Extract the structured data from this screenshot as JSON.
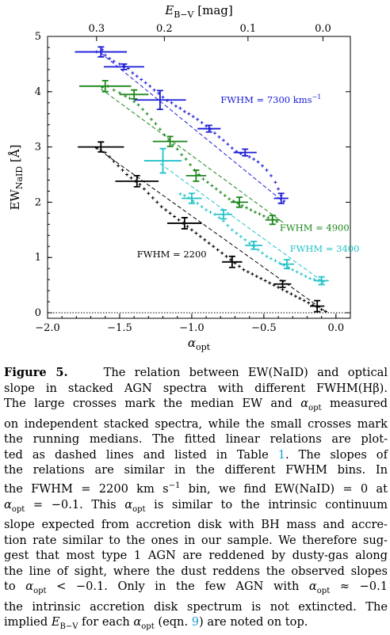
{
  "chart_data": {
    "type": "scatter",
    "xlabel": "α_opt",
    "ylabel": "EW_NaID [Å]",
    "top_xlabel": "E_B−V [mag]",
    "xlim": [
      -2.0,
      0.1
    ],
    "ylim": [
      -0.1,
      5.0
    ],
    "x_ticks": [
      "−2.0",
      "−1.5",
      "−1.0",
      "−0.5",
      "0.0"
    ],
    "y_ticks": [
      "0",
      "1",
      "2",
      "3",
      "4",
      "5"
    ],
    "top_ticks": [
      "0.3",
      "0.2",
      "0.1",
      "0.0"
    ],
    "grid": false,
    "zero_line": "dotted",
    "series": [
      {
        "name": "FWHM = 7300 kms⁻¹",
        "color": "#1a1ad8",
        "fit": [
          [
            -1.63,
            4.7
          ],
          [
            -0.36,
            2.0
          ]
        ],
        "medians": [
          {
            "x": -1.63,
            "y": 4.72,
            "xerr": 0.18,
            "yerr": 0.09
          },
          {
            "x": -1.47,
            "y": 4.45,
            "xerr": 0.14,
            "yerr": 0.05
          },
          {
            "x": -1.22,
            "y": 3.85,
            "xerr": 0.18,
            "yerr": 0.17
          },
          {
            "x": -0.88,
            "y": 3.33,
            "xerr": 0.08,
            "yerr": 0.06
          },
          {
            "x": -0.63,
            "y": 2.9,
            "xerr": 0.08,
            "yerr": 0.06
          },
          {
            "x": -0.38,
            "y": 2.07,
            "xerr": 0.05,
            "yerr": 0.09
          }
        ],
        "running": [
          [
            -1.66,
            4.72
          ],
          [
            -1.62,
            4.76
          ],
          [
            -1.6,
            4.66
          ],
          [
            -1.57,
            4.6
          ],
          [
            -1.54,
            4.55
          ],
          [
            -1.5,
            4.5
          ],
          [
            -1.47,
            4.47
          ],
          [
            -1.44,
            4.42
          ],
          [
            -1.41,
            4.34
          ],
          [
            -1.38,
            4.28
          ],
          [
            -1.35,
            4.22
          ],
          [
            -1.32,
            4.16
          ],
          [
            -1.29,
            4.1
          ],
          [
            -1.26,
            4.03
          ],
          [
            -1.23,
            3.97
          ],
          [
            -1.2,
            3.9
          ],
          [
            -1.17,
            3.84
          ],
          [
            -1.14,
            3.8
          ],
          [
            -1.11,
            3.74
          ],
          [
            -1.08,
            3.7
          ],
          [
            -1.05,
            3.64
          ],
          [
            -1.02,
            3.6
          ],
          [
            -0.99,
            3.55
          ],
          [
            -0.96,
            3.5
          ],
          [
            -0.93,
            3.44
          ],
          [
            -0.9,
            3.38
          ],
          [
            -0.87,
            3.32
          ],
          [
            -0.84,
            3.25
          ],
          [
            -0.81,
            3.18
          ],
          [
            -0.78,
            3.12
          ],
          [
            -0.75,
            3.05
          ],
          [
            -0.72,
            2.98
          ],
          [
            -0.69,
            2.92
          ],
          [
            -0.66,
            2.88
          ],
          [
            -0.63,
            2.85
          ],
          [
            -0.6,
            2.82
          ],
          [
            -0.57,
            2.78
          ],
          [
            -0.54,
            2.73
          ],
          [
            -0.51,
            2.66
          ],
          [
            -0.48,
            2.58
          ],
          [
            -0.45,
            2.48
          ],
          [
            -0.42,
            2.36
          ],
          [
            -0.4,
            2.24
          ],
          [
            -0.38,
            2.12
          ],
          [
            -0.36,
            2.02
          ]
        ]
      },
      {
        "name": "FWHM = 4900",
        "color": "#1b861b",
        "fit": [
          [
            -1.63,
            4.05
          ],
          [
            -0.36,
            1.62
          ]
        ],
        "medians": [
          {
            "x": -1.6,
            "y": 4.1,
            "xerr": 0.18,
            "yerr": 0.1
          },
          {
            "x": -1.4,
            "y": 3.95,
            "xerr": 0.1,
            "yerr": 0.08
          },
          {
            "x": -1.15,
            "y": 3.1,
            "xerr": 0.12,
            "yerr": 0.09
          },
          {
            "x": -0.97,
            "y": 2.48,
            "xerr": 0.07,
            "yerr": 0.1
          },
          {
            "x": -0.67,
            "y": 2.0,
            "xerr": 0.06,
            "yerr": 0.09
          },
          {
            "x": -0.44,
            "y": 1.68,
            "xerr": 0.05,
            "yerr": 0.08
          }
        ],
        "running": [
          [
            -1.62,
            4.08
          ],
          [
            -1.58,
            4.1
          ],
          [
            -1.54,
            4.03
          ],
          [
            -1.5,
            3.98
          ],
          [
            -1.46,
            3.92
          ],
          [
            -1.43,
            3.88
          ],
          [
            -1.4,
            3.82
          ],
          [
            -1.37,
            3.76
          ],
          [
            -1.34,
            3.68
          ],
          [
            -1.31,
            3.6
          ],
          [
            -1.28,
            3.5
          ],
          [
            -1.25,
            3.42
          ],
          [
            -1.22,
            3.32
          ],
          [
            -1.19,
            3.22
          ],
          [
            -1.16,
            3.12
          ],
          [
            -1.13,
            3.04
          ],
          [
            -1.1,
            2.96
          ],
          [
            -1.07,
            2.86
          ],
          [
            -1.04,
            2.78
          ],
          [
            -1.01,
            2.68
          ],
          [
            -0.98,
            2.58
          ],
          [
            -0.95,
            2.5
          ],
          [
            -0.92,
            2.42
          ],
          [
            -0.89,
            2.36
          ],
          [
            -0.86,
            2.3
          ],
          [
            -0.83,
            2.24
          ],
          [
            -0.8,
            2.18
          ],
          [
            -0.77,
            2.12
          ],
          [
            -0.74,
            2.06
          ],
          [
            -0.71,
            2.02
          ],
          [
            -0.68,
            1.98
          ],
          [
            -0.65,
            1.94
          ],
          [
            -0.62,
            1.9
          ],
          [
            -0.59,
            1.86
          ],
          [
            -0.56,
            1.82
          ],
          [
            -0.53,
            1.79
          ],
          [
            -0.5,
            1.75
          ],
          [
            -0.47,
            1.72
          ],
          [
            -0.44,
            1.69
          ],
          [
            -0.41,
            1.65
          ]
        ]
      },
      {
        "name": "FWHM = 3400",
        "color": "#22c2c8",
        "fit": [
          [
            -1.22,
            2.7
          ],
          [
            -0.1,
            0.58
          ]
        ],
        "medians": [
          {
            "x": -1.2,
            "y": 2.75,
            "xerr": 0.13,
            "yerr": 0.22
          },
          {
            "x": -1.0,
            "y": 2.07,
            "xerr": 0.07,
            "yerr": 0.09
          },
          {
            "x": -0.78,
            "y": 1.78,
            "xerr": 0.06,
            "yerr": 0.08
          },
          {
            "x": -0.57,
            "y": 1.22,
            "xerr": 0.06,
            "yerr": 0.07
          },
          {
            "x": -0.34,
            "y": 0.88,
            "xerr": 0.05,
            "yerr": 0.08
          },
          {
            "x": -0.1,
            "y": 0.58,
            "xerr": 0.05,
            "yerr": 0.07
          }
        ],
        "running": [
          [
            -1.08,
            2.15
          ],
          [
            -1.05,
            2.12
          ],
          [
            -1.02,
            2.08
          ],
          [
            -0.99,
            2.02
          ],
          [
            -0.96,
            1.98
          ],
          [
            -0.93,
            1.92
          ],
          [
            -0.9,
            1.86
          ],
          [
            -0.87,
            1.82
          ],
          [
            -0.84,
            1.78
          ],
          [
            -0.81,
            1.72
          ],
          [
            -0.78,
            1.66
          ],
          [
            -0.75,
            1.58
          ],
          [
            -0.72,
            1.5
          ],
          [
            -0.69,
            1.44
          ],
          [
            -0.66,
            1.38
          ],
          [
            -0.63,
            1.32
          ],
          [
            -0.6,
            1.26
          ],
          [
            -0.57,
            1.2
          ],
          [
            -0.54,
            1.14
          ],
          [
            -0.51,
            1.08
          ],
          [
            -0.48,
            1.02
          ],
          [
            -0.45,
            0.98
          ],
          [
            -0.42,
            0.94
          ],
          [
            -0.39,
            0.9
          ],
          [
            -0.36,
            0.86
          ],
          [
            -0.33,
            0.82
          ],
          [
            -0.3,
            0.78
          ],
          [
            -0.27,
            0.74
          ],
          [
            -0.24,
            0.7
          ],
          [
            -0.21,
            0.66
          ],
          [
            -0.18,
            0.62
          ],
          [
            -0.15,
            0.6
          ],
          [
            -0.12,
            0.58
          ],
          [
            -0.09,
            0.56
          ]
        ]
      },
      {
        "name": "FWHM = 2200",
        "color": "#000000",
        "fit": [
          [
            -1.67,
            3.0
          ],
          [
            -0.06,
            0.0
          ]
        ],
        "medians": [
          {
            "x": -1.63,
            "y": 3.0,
            "xerr": 0.16,
            "yerr": 0.09
          },
          {
            "x": -1.38,
            "y": 2.38,
            "xerr": 0.15,
            "yerr": 0.1
          },
          {
            "x": -1.05,
            "y": 1.62,
            "xerr": 0.12,
            "yerr": 0.1
          },
          {
            "x": -0.72,
            "y": 0.92,
            "xerr": 0.07,
            "yerr": 0.1
          },
          {
            "x": -0.37,
            "y": 0.52,
            "xerr": 0.06,
            "yerr": 0.06
          },
          {
            "x": -0.13,
            "y": 0.12,
            "xerr": 0.05,
            "yerr": 0.1
          }
        ],
        "running": [
          [
            -1.66,
            2.98
          ],
          [
            -1.63,
            2.94
          ],
          [
            -1.6,
            2.9
          ],
          [
            -1.57,
            2.82
          ],
          [
            -1.54,
            2.74
          ],
          [
            -1.51,
            2.66
          ],
          [
            -1.48,
            2.58
          ],
          [
            -1.45,
            2.5
          ],
          [
            -1.42,
            2.44
          ],
          [
            -1.39,
            2.38
          ],
          [
            -1.36,
            2.32
          ],
          [
            -1.33,
            2.24
          ],
          [
            -1.3,
            2.16
          ],
          [
            -1.27,
            2.08
          ],
          [
            -1.24,
            2.0
          ],
          [
            -1.21,
            1.92
          ],
          [
            -1.18,
            1.86
          ],
          [
            -1.15,
            1.8
          ],
          [
            -1.12,
            1.74
          ],
          [
            -1.09,
            1.68
          ],
          [
            -1.06,
            1.62
          ],
          [
            -1.03,
            1.56
          ],
          [
            -1.0,
            1.5
          ],
          [
            -0.97,
            1.44
          ],
          [
            -0.94,
            1.38
          ],
          [
            -0.91,
            1.32
          ],
          [
            -0.88,
            1.26
          ],
          [
            -0.85,
            1.2
          ],
          [
            -0.82,
            1.14
          ],
          [
            -0.79,
            1.08
          ],
          [
            -0.76,
            1.02
          ],
          [
            -0.73,
            0.96
          ],
          [
            -0.7,
            0.9
          ],
          [
            -0.67,
            0.84
          ],
          [
            -0.64,
            0.78
          ],
          [
            -0.61,
            0.74
          ],
          [
            -0.58,
            0.7
          ],
          [
            -0.55,
            0.66
          ],
          [
            -0.52,
            0.62
          ],
          [
            -0.49,
            0.58
          ],
          [
            -0.46,
            0.54
          ],
          [
            -0.43,
            0.5
          ],
          [
            -0.4,
            0.46
          ],
          [
            -0.37,
            0.42
          ],
          [
            -0.34,
            0.38
          ],
          [
            -0.31,
            0.34
          ],
          [
            -0.28,
            0.3
          ],
          [
            -0.25,
            0.26
          ],
          [
            -0.22,
            0.22
          ],
          [
            -0.19,
            0.18
          ],
          [
            -0.16,
            0.14
          ],
          [
            -0.13,
            0.1
          ],
          [
            -0.1,
            0.06
          ],
          [
            -0.07,
            0.02
          ]
        ]
      }
    ]
  },
  "caption": {
    "label": "Figure 5.",
    "lines": [
      "The relation between EW(NaID) and optical",
      "slope in stacked AGN spectra with different FWHM(Hβ).",
      "The large crosses mark the median EW and αopt measured",
      "on independent stacked spectra, while the small crosses mark",
      "the running medians. The fitted linear relations are plot-",
      "ted as dashed lines and listed in Table 1. The slopes of",
      "the relations are similar in the different FWHM bins. In",
      "the FWHM = 2200 km s−1 bin, we find EW(NaID) = 0 at",
      "αopt = −0.1. This αopt is similar to the intrinsic continuum",
      "slope expected from accretion disk with BH mass and accre-",
      "tion rate similar to the ones in our sample. We therefore sug-",
      "gest that most type 1 AGN are reddened by dusty-gas along",
      "the line of sight, where the dust reddens the observed slopes",
      "to αopt < −0.1. Only in the few AGN with αopt ≈ −0.1",
      "the intrinsic accretion disk spectrum is not extincted. The",
      "implied EB−V for each αopt (eqn. 9) are noted on top."
    ]
  }
}
